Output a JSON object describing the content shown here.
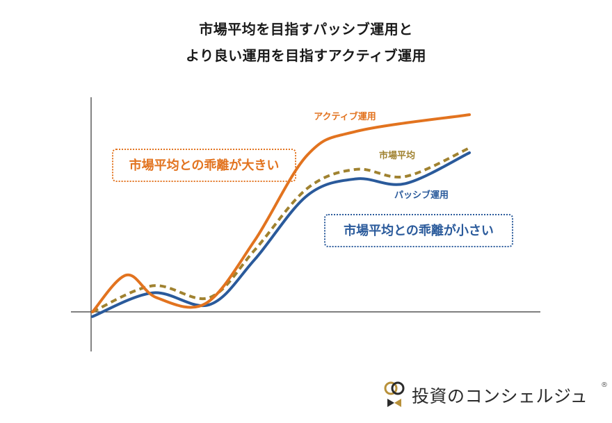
{
  "title": {
    "line1": "市場平均を目指すパッシブ運用と",
    "line2": "より良い運用を目指すアクティブ運用"
  },
  "chart_data": {
    "type": "line",
    "title": "市場平均を目指すパッシブ運用と より良い運用を目指すアクティブ運用",
    "xlabel": "",
    "ylabel": "",
    "grid": false,
    "series": [
      {
        "name": "アクティブ運用",
        "color": "#e2731f",
        "style": "solid",
        "x": [
          0,
          0.9,
          1.7,
          3.0,
          4.3,
          5.7,
          7.0,
          10.0
        ],
        "values": [
          0.0,
          1.55,
          0.6,
          0.35,
          3.0,
          6.6,
          7.6,
          8.3
        ]
      },
      {
        "name": "市場平均",
        "color": "#a08230",
        "style": "dashed",
        "x": [
          0,
          1.6,
          3.1,
          4.3,
          5.7,
          7.0,
          8.3,
          10.0
        ],
        "values": [
          0.0,
          1.1,
          0.6,
          2.6,
          5.2,
          6.0,
          5.7,
          6.9
        ]
      },
      {
        "name": "パッシブ運用",
        "color": "#2a5a9b",
        "style": "solid",
        "x": [
          0,
          1.6,
          3.1,
          4.3,
          5.7,
          7.0,
          8.3,
          10.0
        ],
        "values": [
          -0.2,
          0.8,
          0.3,
          2.2,
          4.9,
          5.6,
          5.4,
          6.7
        ]
      }
    ],
    "annotations": [
      "市場平均との乖離が大きい",
      "市場平均との乖離が小さい"
    ]
  },
  "callouts": {
    "active": "市場平均との乖離が大きい",
    "passive": "市場平均との乖離が小さい"
  },
  "brand": {
    "name": "投資のコンシェルジュ",
    "registered": "®"
  }
}
